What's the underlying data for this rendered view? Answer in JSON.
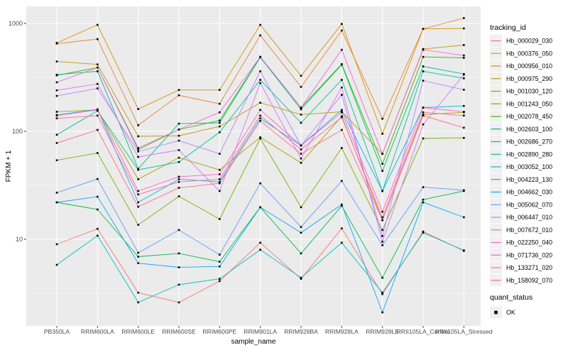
{
  "figure": {
    "background": "#FFFFFF",
    "panel_background": "#EBEBEB",
    "grid_color": "#FFFFFF",
    "tick_color": "#333333",
    "tick_label_color": "#4D4D4D",
    "text_color": "#000000",
    "legend_key_background": "#F0F0F0",
    "marker_color": "#000000"
  },
  "chart_data": {
    "type": "line",
    "title": "",
    "xlabel": "sample_name",
    "ylabel": "FPKM + 1",
    "y_scale": "log10",
    "y_tick_labels": [
      "10",
      "100",
      "1000"
    ],
    "y_tick_values": [
      10,
      100,
      1000
    ],
    "y_minor_values": [
      3.162,
      31.62,
      316.2
    ],
    "ylim": [
      1.57,
      1440
    ],
    "grid": true,
    "marker": "black-square",
    "legend_position": "right",
    "legend": {
      "series_title": "tracking_id",
      "shape_title": "quant_status",
      "shape_label": "OK"
    },
    "categories": [
      "PB350LA",
      "RRIM600LA",
      "RRIM600LE",
      "RRIM600SE",
      "RRIM600PE",
      "RRIM901LA",
      "RRIM928BA",
      "RRIM928LA",
      "RRIM928LE",
      "RRII105LA_Control",
      "RRII105LA_Stressed"
    ],
    "series": [
      {
        "name": "Hb_000029_030",
        "color": "#F8766D",
        "values": [
          9,
          12.5,
          3.2,
          2.6,
          4.1,
          9.3,
          4.3,
          12.6,
          3.1,
          11.8,
          7.8
        ]
      },
      {
        "name": "Hb_000376_050",
        "color": "#EA8331",
        "values": [
          650,
          715,
          114,
          216,
          180,
          775,
          258,
          860,
          131,
          890,
          1120
        ]
      },
      {
        "name": "Hb_000956_010",
        "color": "#D89000",
        "values": [
          660,
          970,
          161,
          242,
          242,
          970,
          327,
          990,
          95,
          890,
          900
        ]
      },
      {
        "name": "Hb_000975_290",
        "color": "#C09B00",
        "values": [
          444,
          417,
          90,
          91,
          111,
          184,
          143,
          152,
          62,
          580,
          630
        ]
      },
      {
        "name": "Hb_001030_120",
        "color": "#A3A500",
        "values": [
          152,
          158,
          36,
          57,
          44,
          88,
          51,
          138,
          15,
          143,
          150
        ]
      },
      {
        "name": "Hb_001243_050",
        "color": "#7CAE00",
        "values": [
          54,
          63,
          13.6,
          25,
          15.4,
          86,
          19.8,
          70,
          12.2,
          86,
          87
        ]
      },
      {
        "name": "Hb_002078_450",
        "color": "#39B600",
        "values": [
          330,
          390,
          68,
          104,
          126,
          490,
          166,
          420,
          50,
          490,
          480
        ]
      },
      {
        "name": "Hb_002603_100",
        "color": "#00BB4E",
        "values": [
          22,
          18.9,
          6.9,
          7.4,
          6.2,
          19.8,
          7.4,
          20.4,
          4.4,
          23.3,
          28
        ]
      },
      {
        "name": "Hb_002686_270",
        "color": "#00C079",
        "values": [
          335,
          360,
          45,
          118,
          120,
          485,
          160,
          415,
          43,
          400,
          340
        ]
      },
      {
        "name": "Hb_002890_280",
        "color": "#00C19F",
        "values": [
          93,
          155,
          44,
          52,
          98,
          300,
          120,
          300,
          28,
          360,
          310
        ]
      },
      {
        "name": "Hb_003052_100",
        "color": "#00BFC4",
        "values": [
          5.8,
          10.8,
          2.6,
          3.8,
          4.3,
          8.0,
          4.4,
          9.3,
          3.2,
          11.5,
          7.9
        ]
      },
      {
        "name": "Hb_004223_130",
        "color": "#00B8E5",
        "values": [
          142,
          160,
          22,
          36,
          34,
          132,
          74,
          158,
          28,
          166,
          172
        ]
      },
      {
        "name": "Hb_004662_030",
        "color": "#00ACFC",
        "values": [
          22,
          24.8,
          6.0,
          5.5,
          5.6,
          19.8,
          11.5,
          21,
          2.1,
          22,
          16
        ]
      },
      {
        "name": "Hb_005062_070",
        "color": "#619CFF",
        "values": [
          27,
          36.2,
          7.5,
          12.2,
          7.2,
          33,
          13,
          34.7,
          8.8,
          30.4,
          28.5
        ]
      },
      {
        "name": "Hb_006447_010",
        "color": "#AE87FF",
        "values": [
          213,
          250,
          65,
          82,
          62,
          360,
          74,
          218,
          10.7,
          295,
          243
        ]
      },
      {
        "name": "Hb_007672_010",
        "color": "#DB72FB",
        "values": [
          240,
          275,
          58,
          67,
          28,
          280,
          56,
          255,
          9.5,
          116,
          335
        ]
      },
      {
        "name": "Hb_022250_040",
        "color": "#F564E3",
        "values": [
          285,
          390,
          70,
          104,
          150,
          490,
          166,
          570,
          62,
          570,
          505
        ]
      },
      {
        "name": "Hb_071736_020",
        "color": "#FF61C9",
        "values": [
          140,
          158,
          28,
          38,
          40,
          158,
          74,
          150,
          18,
          166,
          152
        ]
      },
      {
        "name": "Hb_133271_020",
        "color": "#FF68A1",
        "values": [
          132,
          140,
          26,
          34,
          36,
          140,
          68,
          135,
          16,
          150,
          140
        ]
      },
      {
        "name": "Hb_158092_070",
        "color": "#FF6B8D",
        "values": [
          78,
          103,
          20,
          30,
          33,
          125,
          62,
          103,
          15,
          140,
          108
        ]
      }
    ]
  }
}
